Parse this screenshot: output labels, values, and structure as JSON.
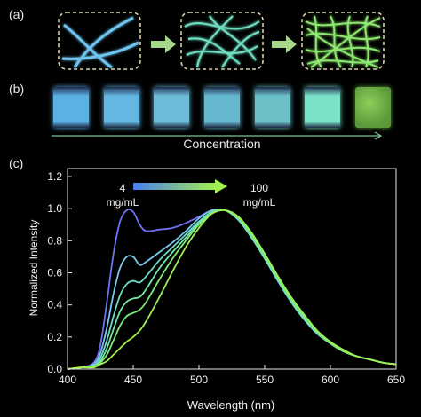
{
  "panels": {
    "a": "(a)",
    "b": "(b)",
    "c": "(c)"
  },
  "concentration_label": "Concentration",
  "vial_colors": [
    "#5bb0e6",
    "#64b7e2",
    "#6cbcd8",
    "#66b8d0",
    "#6cc0c8",
    "#7ae0c6",
    "#5a9a3a"
  ],
  "chart_data": {
    "type": "line",
    "title": "",
    "xlabel": "Wavelength (nm)",
    "ylabel": "Normalized Intensity",
    "xlim": [
      400,
      650
    ],
    "ylim": [
      0,
      1.25
    ],
    "xticks": [
      400,
      450,
      500,
      550,
      600,
      650
    ],
    "yticks": [
      0.0,
      0.2,
      0.4,
      0.6,
      0.8,
      1.0,
      1.2
    ],
    "annotation_low": {
      "value": "4",
      "unit": "mg/mL"
    },
    "annotation_high": {
      "value": "100",
      "unit": "mg/mL"
    },
    "gradient_colors": [
      "#4a7df0",
      "#9ff050"
    ],
    "series": [
      {
        "color": "#6f72f2",
        "x": [
          400,
          410,
          420,
          425,
          430,
          435,
          440,
          445,
          450,
          455,
          460,
          470,
          480,
          490,
          500,
          510,
          520,
          530,
          540,
          550,
          560,
          570,
          580,
          590,
          600,
          610,
          620,
          630,
          640,
          650
        ],
        "y": [
          0,
          0.01,
          0.04,
          0.15,
          0.42,
          0.72,
          0.92,
          0.99,
          0.98,
          0.9,
          0.86,
          0.87,
          0.88,
          0.91,
          0.95,
          0.99,
          0.99,
          0.93,
          0.83,
          0.7,
          0.56,
          0.43,
          0.32,
          0.23,
          0.16,
          0.11,
          0.08,
          0.06,
          0.04,
          0.03
        ]
      },
      {
        "color": "#78c8f0",
        "x": [
          400,
          410,
          420,
          425,
          430,
          435,
          440,
          445,
          450,
          455,
          460,
          470,
          480,
          490,
          500,
          510,
          520,
          530,
          540,
          550,
          560,
          570,
          580,
          590,
          600,
          610,
          620,
          630,
          640,
          650
        ],
        "y": [
          0,
          0.01,
          0.03,
          0.1,
          0.26,
          0.47,
          0.63,
          0.7,
          0.7,
          0.65,
          0.67,
          0.73,
          0.79,
          0.86,
          0.94,
          0.99,
          0.99,
          0.93,
          0.82,
          0.69,
          0.55,
          0.42,
          0.31,
          0.22,
          0.16,
          0.11,
          0.08,
          0.06,
          0.04,
          0.03
        ]
      },
      {
        "color": "#6fdcc8",
        "x": [
          400,
          410,
          420,
          425,
          430,
          435,
          440,
          445,
          450,
          455,
          460,
          470,
          480,
          490,
          500,
          510,
          520,
          530,
          540,
          550,
          560,
          570,
          580,
          590,
          600,
          610,
          620,
          630,
          640,
          650
        ],
        "y": [
          0,
          0.01,
          0.02,
          0.07,
          0.18,
          0.33,
          0.46,
          0.53,
          0.55,
          0.54,
          0.58,
          0.68,
          0.76,
          0.84,
          0.92,
          0.98,
          0.99,
          0.93,
          0.82,
          0.69,
          0.55,
          0.42,
          0.31,
          0.22,
          0.16,
          0.11,
          0.08,
          0.06,
          0.04,
          0.03
        ]
      },
      {
        "color": "#72e6a6",
        "x": [
          400,
          410,
          420,
          425,
          430,
          435,
          440,
          445,
          450,
          455,
          460,
          470,
          480,
          490,
          500,
          510,
          520,
          530,
          540,
          550,
          560,
          570,
          580,
          590,
          600,
          610,
          620,
          630,
          640,
          650
        ],
        "y": [
          0,
          0.01,
          0.02,
          0.05,
          0.13,
          0.25,
          0.36,
          0.42,
          0.44,
          0.45,
          0.5,
          0.63,
          0.73,
          0.82,
          0.91,
          0.98,
          0.99,
          0.94,
          0.83,
          0.7,
          0.56,
          0.43,
          0.32,
          0.23,
          0.16,
          0.11,
          0.08,
          0.06,
          0.04,
          0.03
        ]
      },
      {
        "color": "#7eeb78",
        "x": [
          400,
          410,
          420,
          425,
          430,
          435,
          440,
          445,
          450,
          455,
          460,
          470,
          480,
          490,
          500,
          510,
          520,
          530,
          540,
          550,
          560,
          570,
          580,
          590,
          600,
          610,
          620,
          630,
          640,
          650
        ],
        "y": [
          0,
          0.01,
          0.02,
          0.04,
          0.09,
          0.18,
          0.27,
          0.33,
          0.35,
          0.37,
          0.42,
          0.56,
          0.69,
          0.8,
          0.9,
          0.97,
          0.99,
          0.94,
          0.84,
          0.71,
          0.57,
          0.44,
          0.33,
          0.23,
          0.16,
          0.11,
          0.08,
          0.06,
          0.04,
          0.03
        ]
      },
      {
        "color": "#9ff050",
        "x": [
          400,
          410,
          420,
          425,
          430,
          435,
          440,
          445,
          450,
          455,
          460,
          470,
          480,
          490,
          500,
          510,
          520,
          530,
          540,
          550,
          560,
          570,
          580,
          590,
          600,
          610,
          620,
          630,
          640,
          650
        ],
        "y": [
          0,
          0.01,
          0.01,
          0.03,
          0.05,
          0.09,
          0.13,
          0.17,
          0.2,
          0.24,
          0.3,
          0.45,
          0.61,
          0.76,
          0.88,
          0.97,
          0.99,
          0.95,
          0.85,
          0.72,
          0.58,
          0.45,
          0.34,
          0.24,
          0.17,
          0.12,
          0.08,
          0.06,
          0.04,
          0.03
        ]
      }
    ]
  }
}
